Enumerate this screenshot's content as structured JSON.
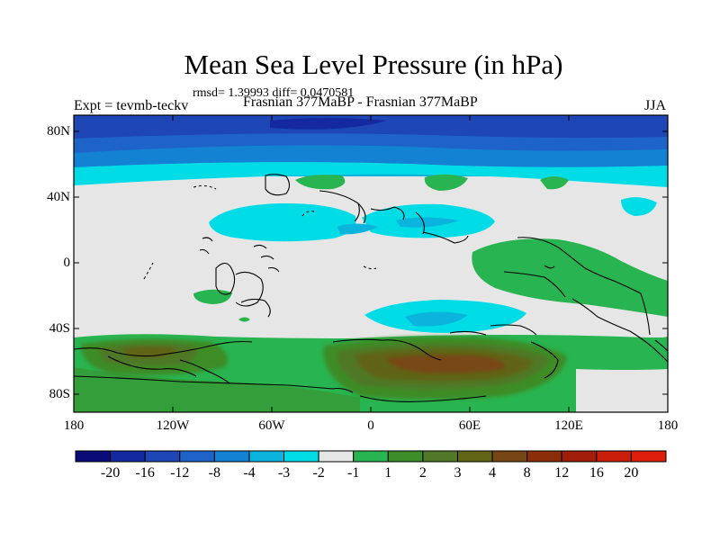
{
  "title": "Mean Sea Level Pressure (in hPa)",
  "stats": "rmsd= 1.39993 diff= 0.0470581",
  "left_label": "Expt = tevmb-teckv",
  "center_label": "Frasnian 377MaBP - Frasnian 377MaBP",
  "season": "JJA",
  "lat_ticks": [
    "80N",
    "40N",
    "0",
    "40S",
    "80S"
  ],
  "lon_ticks": [
    "180",
    "120W",
    "60W",
    "0",
    "60E",
    "120E",
    "180"
  ],
  "colorbar": {
    "colors": [
      "#0a0a78",
      "#1428a0",
      "#1e46b4",
      "#1e64c8",
      "#1482d2",
      "#0ab4dc",
      "#00dce6",
      "#e6e6e6",
      "#28b450",
      "#3c8c28",
      "#507828",
      "#606414",
      "#784614",
      "#8c2d0a",
      "#a01e0a",
      "#c81e0a",
      "#dc1e0a"
    ],
    "labels": [
      "-20",
      "-16",
      "-12",
      "-8",
      "-4",
      "-3",
      "-2",
      "-1",
      "1",
      "2",
      "3",
      "4",
      "8",
      "12",
      "16",
      "20"
    ]
  }
}
